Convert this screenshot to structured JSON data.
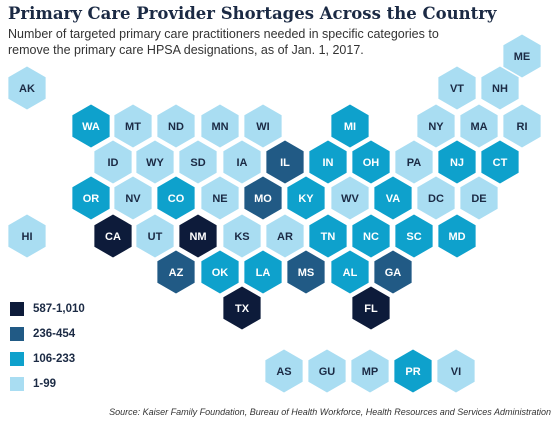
{
  "title": "Primary Care Provider Shortages Across the Country",
  "subtitle": "Number of targeted primary care practitioners needed in specific categories to remove the primary care HPSA designations, as of Jan. 1, 2017.",
  "source": "Source:  Kaiser Family Foundation, Bureau of Health Workforce, Health Resources and Services Administration",
  "colors": {
    "587-1,010": "#0d1b3a",
    "236-454": "#215a85",
    "106-233": "#0ea1cc",
    "1-99": "#a9ddf2",
    "label_dark": "#1b2a44",
    "label_light": "#ffffff"
  },
  "legend": [
    {
      "label": "587-1,010",
      "category": "587-1,010"
    },
    {
      "label": "236-454",
      "category": "236-454"
    },
    {
      "label": "106-233",
      "category": "106-233"
    },
    {
      "label": "1-99",
      "category": "1-99"
    }
  ],
  "states": [
    {
      "code": "AK",
      "category": "1-99"
    },
    {
      "code": "ME",
      "category": "1-99"
    },
    {
      "code": "VT",
      "category": "1-99"
    },
    {
      "code": "NH",
      "category": "1-99"
    },
    {
      "code": "WA",
      "category": "106-233"
    },
    {
      "code": "MT",
      "category": "1-99"
    },
    {
      "code": "ND",
      "category": "1-99"
    },
    {
      "code": "MN",
      "category": "1-99"
    },
    {
      "code": "WI",
      "category": "1-99"
    },
    {
      "code": "MI",
      "category": "106-233"
    },
    {
      "code": "NY",
      "category": "1-99"
    },
    {
      "code": "MA",
      "category": "1-99"
    },
    {
      "code": "RI",
      "category": "1-99"
    },
    {
      "code": "ID",
      "category": "1-99"
    },
    {
      "code": "WY",
      "category": "1-99"
    },
    {
      "code": "SD",
      "category": "1-99"
    },
    {
      "code": "IA",
      "category": "1-99"
    },
    {
      "code": "IL",
      "category": "236-454"
    },
    {
      "code": "IN",
      "category": "106-233"
    },
    {
      "code": "OH",
      "category": "106-233"
    },
    {
      "code": "PA",
      "category": "1-99"
    },
    {
      "code": "NJ",
      "category": "106-233"
    },
    {
      "code": "CT",
      "category": "106-233"
    },
    {
      "code": "OR",
      "category": "106-233"
    },
    {
      "code": "NV",
      "category": "1-99"
    },
    {
      "code": "CO",
      "category": "106-233"
    },
    {
      "code": "NE",
      "category": "1-99"
    },
    {
      "code": "MO",
      "category": "236-454"
    },
    {
      "code": "KY",
      "category": "106-233"
    },
    {
      "code": "WV",
      "category": "1-99"
    },
    {
      "code": "VA",
      "category": "106-233"
    },
    {
      "code": "DC",
      "category": "1-99"
    },
    {
      "code": "DE",
      "category": "1-99"
    },
    {
      "code": "HI",
      "category": "1-99"
    },
    {
      "code": "CA",
      "category": "587-1,010"
    },
    {
      "code": "UT",
      "category": "1-99"
    },
    {
      "code": "NM",
      "category": "587-1,010"
    },
    {
      "code": "KS",
      "category": "1-99"
    },
    {
      "code": "AR",
      "category": "1-99"
    },
    {
      "code": "TN",
      "category": "106-233"
    },
    {
      "code": "NC",
      "category": "106-233"
    },
    {
      "code": "SC",
      "category": "106-233"
    },
    {
      "code": "MD",
      "category": "106-233"
    },
    {
      "code": "AZ",
      "category": "236-454"
    },
    {
      "code": "OK",
      "category": "106-233"
    },
    {
      "code": "LA",
      "category": "106-233"
    },
    {
      "code": "MS",
      "category": "236-454"
    },
    {
      "code": "AL",
      "category": "106-233"
    },
    {
      "code": "GA",
      "category": "236-454"
    },
    {
      "code": "TX",
      "category": "587-1,010"
    },
    {
      "code": "FL",
      "category": "587-1,010"
    },
    {
      "code": "AS",
      "category": "1-99"
    },
    {
      "code": "GU",
      "category": "1-99"
    },
    {
      "code": "MP",
      "category": "1-99"
    },
    {
      "code": "PR",
      "category": "106-233"
    },
    {
      "code": "VI",
      "category": "1-99"
    }
  ]
}
